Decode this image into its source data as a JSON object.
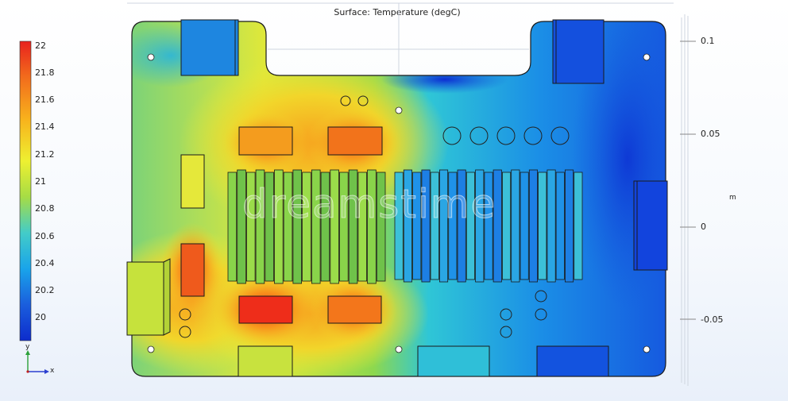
{
  "plot": {
    "title": "Surface: Temperature (degC)",
    "unit": "m",
    "watermark": "dreamstime"
  },
  "colorbar": {
    "ticks": [
      "22",
      "21.8",
      "21.6",
      "21.4",
      "21.2",
      "21",
      "20.8",
      "20.6",
      "20.4",
      "20.2",
      "20"
    ],
    "colors": [
      "#e8221e",
      "#f26c1c",
      "#f8b21c",
      "#eef031",
      "#a6dc45",
      "#43ccc8",
      "#19a4ea",
      "#1a5edd",
      "#0d2ccc"
    ]
  },
  "axis": {
    "y_ticks": [
      "0.1",
      "0.05",
      "0",
      "-0.05"
    ],
    "triad_y": "y",
    "triad_x": "x"
  }
}
